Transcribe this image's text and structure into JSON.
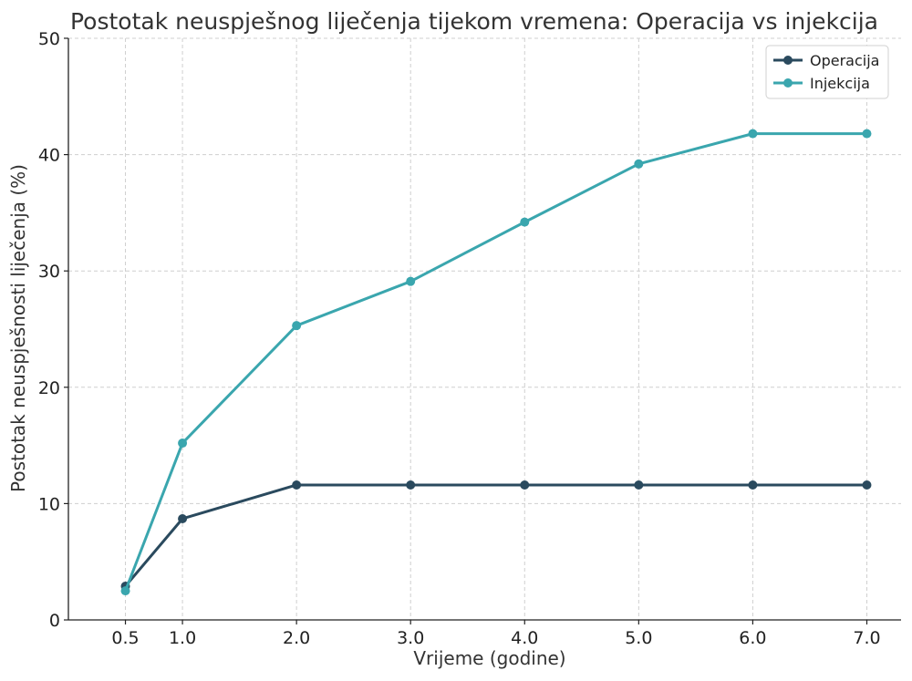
{
  "chart_data": {
    "type": "line",
    "title": "Postotak neuspješnog liječenja tijekom vremena: Operacija vs injekcija",
    "xlabel": "Vrijeme (godine)",
    "ylabel": "Postotak neuspješnosti liječenja (%)",
    "x": [
      0.5,
      1.0,
      2.0,
      3.0,
      4.0,
      5.0,
      6.0,
      7.0
    ],
    "x_tick_labels": [
      "0.5",
      "1.0",
      "2.0",
      "3.0",
      "4.0",
      "5.0",
      "6.0",
      "7.0"
    ],
    "y_ticks": [
      0,
      10,
      20,
      30,
      40,
      50
    ],
    "y_tick_labels": [
      "0",
      "10",
      "20",
      "30",
      "40",
      "50"
    ],
    "xlim": [
      0.0,
      7.3
    ],
    "ylim": [
      0,
      50
    ],
    "grid": true,
    "legend_position": "top-right",
    "series": [
      {
        "name": "Operacija",
        "color": "#2a4a5e",
        "values": [
          2.9,
          8.7,
          11.6,
          11.6,
          11.6,
          11.6,
          11.6,
          11.6
        ]
      },
      {
        "name": "Injekcija",
        "color": "#3aa6ae",
        "values": [
          2.5,
          15.2,
          25.3,
          29.1,
          34.2,
          39.2,
          41.8,
          41.8
        ]
      }
    ]
  }
}
